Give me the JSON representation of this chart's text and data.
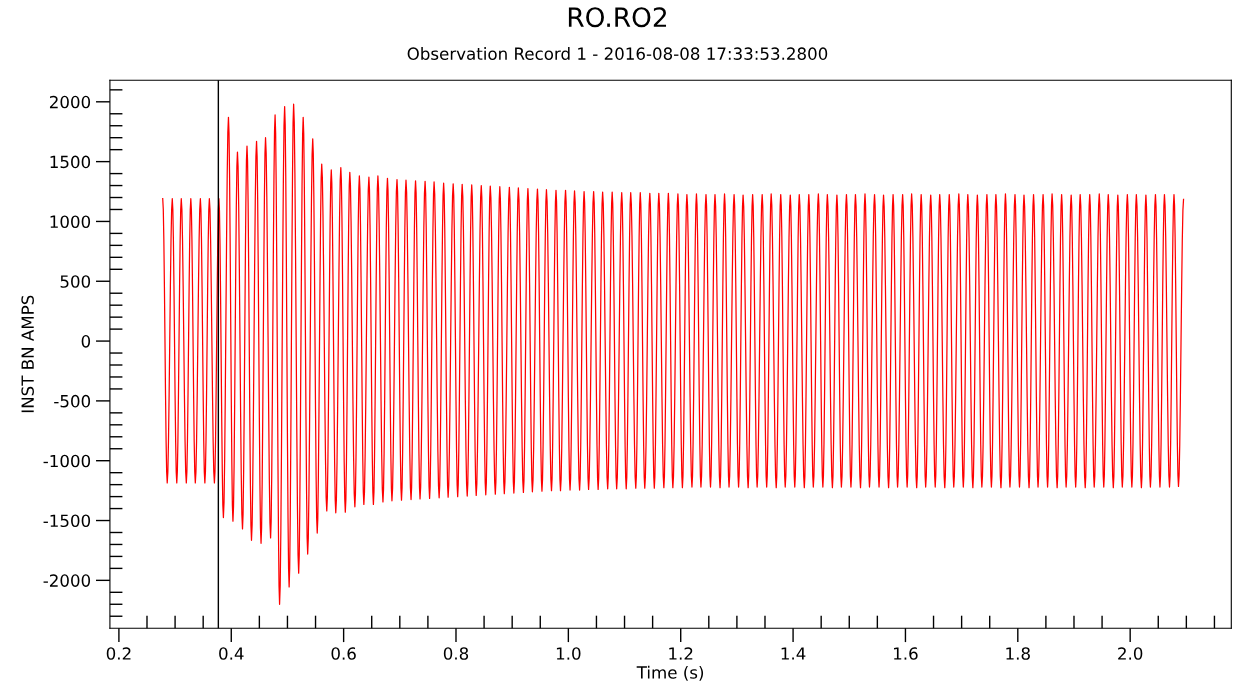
{
  "chart_data": {
    "type": "line",
    "title": "RO.RO2",
    "subtitle": "Observation Record 1 - 2016-08-08 17:33:53.2800",
    "xlabel": "Time (s)",
    "ylabel": "INST BN AMPS",
    "xlim": [
      0.184,
      2.18
    ],
    "ylim": [
      -2400,
      2180
    ],
    "xticks": [
      {
        "value": 0.2,
        "label": "0.2"
      },
      {
        "value": 0.25,
        "label": null
      },
      {
        "value": 0.3,
        "label": null
      },
      {
        "value": 0.35,
        "label": null
      },
      {
        "value": 0.4,
        "label": "0.4"
      },
      {
        "value": 0.45,
        "label": null
      },
      {
        "value": 0.5,
        "label": null
      },
      {
        "value": 0.55,
        "label": null
      },
      {
        "value": 0.6,
        "label": "0.6"
      },
      {
        "value": 0.65,
        "label": null
      },
      {
        "value": 0.7,
        "label": null
      },
      {
        "value": 0.75,
        "label": null
      },
      {
        "value": 0.8,
        "label": "0.8"
      },
      {
        "value": 0.85,
        "label": null
      },
      {
        "value": 0.9,
        "label": null
      },
      {
        "value": 0.95,
        "label": null
      },
      {
        "value": 1.0,
        "label": "1.0"
      },
      {
        "value": 1.05,
        "label": null
      },
      {
        "value": 1.1,
        "label": null
      },
      {
        "value": 1.15,
        "label": null
      },
      {
        "value": 1.2,
        "label": "1.2"
      },
      {
        "value": 1.25,
        "label": null
      },
      {
        "value": 1.3,
        "label": null
      },
      {
        "value": 1.35,
        "label": null
      },
      {
        "value": 1.4,
        "label": "1.4"
      },
      {
        "value": 1.45,
        "label": null
      },
      {
        "value": 1.5,
        "label": null
      },
      {
        "value": 1.55,
        "label": null
      },
      {
        "value": 1.6,
        "label": "1.6"
      },
      {
        "value": 1.65,
        "label": null
      },
      {
        "value": 1.7,
        "label": null
      },
      {
        "value": 1.75,
        "label": null
      },
      {
        "value": 1.8,
        "label": "1.8"
      },
      {
        "value": 1.85,
        "label": null
      },
      {
        "value": 1.9,
        "label": null
      },
      {
        "value": 1.95,
        "label": null
      },
      {
        "value": 2.0,
        "label": "2.0"
      },
      {
        "value": 2.05,
        "label": null
      },
      {
        "value": 2.1,
        "label": null
      },
      {
        "value": 2.15,
        "label": null
      }
    ],
    "yticks": [
      {
        "value": -2300,
        "label": null
      },
      {
        "value": -2200,
        "label": null
      },
      {
        "value": -2100,
        "label": null
      },
      -2000,
      {
        "value": -1900,
        "label": null
      },
      {
        "value": -1800,
        "label": null
      },
      {
        "value": -1700,
        "label": null
      },
      {
        "value": -1600,
        "label": null
      },
      -1500,
      {
        "value": -1400,
        "label": null
      },
      {
        "value": -1300,
        "label": null
      },
      {
        "value": -1200,
        "label": null
      },
      {
        "value": -1100,
        "label": null
      },
      -1000,
      {
        "value": -900,
        "label": null
      },
      {
        "value": -800,
        "label": null
      },
      {
        "value": -700,
        "label": null
      },
      {
        "value": -600,
        "label": null
      },
      -500,
      {
        "value": -400,
        "label": null
      },
      {
        "value": -300,
        "label": null
      },
      {
        "value": -200,
        "label": null
      },
      {
        "value": -100,
        "label": null
      },
      0,
      {
        "value": 100,
        "label": null
      },
      {
        "value": 200,
        "label": null
      },
      {
        "value": 300,
        "label": null
      },
      {
        "value": 400,
        "label": null
      },
      500,
      {
        "value": 600,
        "label": null
      },
      {
        "value": 700,
        "label": null
      },
      {
        "value": 800,
        "label": null
      },
      {
        "value": 900,
        "label": null
      },
      1000,
      {
        "value": 1100,
        "label": null
      },
      {
        "value": 1200,
        "label": null
      },
      {
        "value": 1300,
        "label": null
      },
      {
        "value": 1400,
        "label": null
      },
      1500,
      {
        "value": 1600,
        "label": null
      },
      {
        "value": 1700,
        "label": null
      },
      {
        "value": 1800,
        "label": null
      },
      {
        "value": 1900,
        "label": null
      },
      2000,
      {
        "value": 2100,
        "label": null
      }
    ],
    "grid": false,
    "marker": "none",
    "line_style": "solid",
    "ref_lines": [
      {
        "axis": "x",
        "value": 0.377,
        "label": null,
        "color": "#000000",
        "line_style": "solid"
      }
    ],
    "series": [
      {
        "color": "#ff0000",
        "x": [
          0.278,
          0.286,
          0.295,
          0.303,
          0.311,
          0.32,
          0.328,
          0.336,
          0.345,
          0.353,
          0.361,
          0.37,
          0.378,
          0.386,
          0.395,
          0.403,
          0.411,
          0.42,
          0.428,
          0.436,
          0.445,
          0.453,
          0.461,
          0.47,
          0.478,
          0.486,
          0.495,
          0.503,
          0.511,
          0.52,
          0.528,
          0.536,
          0.545,
          0.553,
          0.561,
          0.57,
          0.578,
          0.586,
          0.595,
          0.603,
          0.611,
          0.62,
          0.628,
          0.636,
          0.645,
          0.653,
          0.661,
          0.67,
          0.678,
          0.686,
          0.695,
          0.703,
          0.711,
          0.72,
          0.728,
          0.736,
          0.745,
          0.753,
          0.761,
          0.77,
          0.778,
          0.786,
          0.795,
          0.803,
          0.811,
          0.82,
          0.828,
          0.836,
          0.845,
          0.853,
          0.861,
          0.87,
          0.878,
          0.886,
          0.895,
          0.903,
          0.911,
          0.92,
          0.928,
          0.936,
          0.945,
          0.953,
          0.961,
          0.97,
          0.978,
          0.986,
          0.995,
          1.003,
          1.011,
          1.02,
          1.028,
          1.036,
          1.045,
          1.053,
          1.061,
          1.07,
          1.078,
          1.086,
          1.095,
          1.103,
          1.111,
          1.12,
          1.128,
          1.136,
          1.145,
          1.153,
          1.161,
          1.17,
          1.178,
          1.186,
          1.195,
          1.203,
          1.211,
          1.22,
          1.228,
          1.236,
          1.245,
          1.253,
          1.261,
          1.27,
          1.278,
          1.286,
          1.295,
          1.303,
          1.311,
          1.32,
          1.328,
          1.336,
          1.345,
          1.353,
          1.361,
          1.37,
          1.378,
          1.386,
          1.395,
          1.403,
          1.411,
          1.42,
          1.428,
          1.436,
          1.445,
          1.453,
          1.461,
          1.47,
          1.478,
          1.486,
          1.495,
          1.503,
          1.511,
          1.52,
          1.528,
          1.536,
          1.545,
          1.553,
          1.561,
          1.57,
          1.578,
          1.586,
          1.595,
          1.603,
          1.611,
          1.62,
          1.628,
          1.636,
          1.645,
          1.653,
          1.661,
          1.67,
          1.678,
          1.686,
          1.695,
          1.703,
          1.711,
          1.72,
          1.728,
          1.736,
          1.745,
          1.753,
          1.761,
          1.77,
          1.778,
          1.786,
          1.795,
          1.803,
          1.811,
          1.82,
          1.828,
          1.836,
          1.845,
          1.853,
          1.861,
          1.87,
          1.878,
          1.886,
          1.895,
          1.903,
          1.911,
          1.92,
          1.928,
          1.936,
          1.945,
          1.953,
          1.961,
          1.97,
          1.978,
          1.986,
          1.995,
          2.003,
          2.011,
          2.02,
          2.028,
          2.036,
          2.045,
          2.053,
          2.061,
          2.07,
          2.078,
          2.086,
          2.095
        ],
        "values": [
          1190,
          -1185,
          1190,
          -1185,
          1190,
          -1185,
          1190,
          -1185,
          1190,
          -1185,
          1190,
          -1185,
          1190,
          -1475,
          1870,
          -1505,
          1580,
          -1570,
          1630,
          -1665,
          1670,
          -1690,
          1700,
          -1645,
          1890,
          -2200,
          1960,
          -2055,
          1980,
          -1940,
          1870,
          -1780,
          1690,
          -1605,
          1480,
          -1420,
          1430,
          -1435,
          1450,
          -1430,
          1410,
          -1385,
          1380,
          -1365,
          1370,
          -1365,
          1380,
          -1345,
          1360,
          -1335,
          1350,
          -1330,
          1345,
          -1325,
          1340,
          -1320,
          1335,
          -1315,
          1330,
          -1310,
          1320,
          -1305,
          1315,
          -1300,
          1310,
          -1295,
          1305,
          -1290,
          1300,
          -1285,
          1295,
          -1280,
          1290,
          -1275,
          1285,
          -1270,
          1280,
          -1265,
          1275,
          -1260,
          1270,
          -1255,
          1265,
          -1250,
          1260,
          -1250,
          1260,
          -1245,
          1255,
          -1245,
          1250,
          -1240,
          1250,
          -1240,
          1245,
          -1235,
          1245,
          -1235,
          1240,
          -1235,
          1240,
          -1230,
          1240,
          -1230,
          1235,
          -1230,
          1235,
          -1225,
          1235,
          -1225,
          1230,
          -1225,
          1225,
          -1220,
          1230,
          -1220,
          1225,
          -1220,
          1225,
          -1225,
          1230,
          -1220,
          1225,
          -1220,
          1220,
          -1225,
          1225,
          -1220,
          1225,
          -1220,
          1230,
          -1225,
          1225,
          -1220,
          1220,
          -1220,
          1225,
          -1225,
          1225,
          -1220,
          1230,
          -1220,
          1225,
          -1225,
          1220,
          -1220,
          1225,
          -1220,
          1225,
          -1225,
          1230,
          -1220,
          1225,
          -1220,
          1220,
          -1225,
          1225,
          -1220,
          1225,
          -1220,
          1230,
          -1225,
          1225,
          -1220,
          1220,
          -1220,
          1225,
          -1225,
          1225,
          -1220,
          1230,
          -1220,
          1225,
          -1225,
          1220,
          -1220,
          1225,
          -1220,
          1225,
          -1225,
          1230,
          -1220,
          1225,
          -1220,
          1220,
          -1225,
          1225,
          -1220,
          1225,
          -1220,
          1230,
          -1225,
          1225,
          -1220,
          1220,
          -1220,
          1225,
          -1225,
          1225,
          -1220,
          1230,
          -1220,
          1225,
          -1225,
          1220,
          -1220,
          1225,
          -1220,
          1225,
          -1225,
          1220,
          -1220,
          1225,
          -1220,
          1225,
          -1220,
          1225,
          -1215,
          1185
        ]
      }
    ]
  }
}
